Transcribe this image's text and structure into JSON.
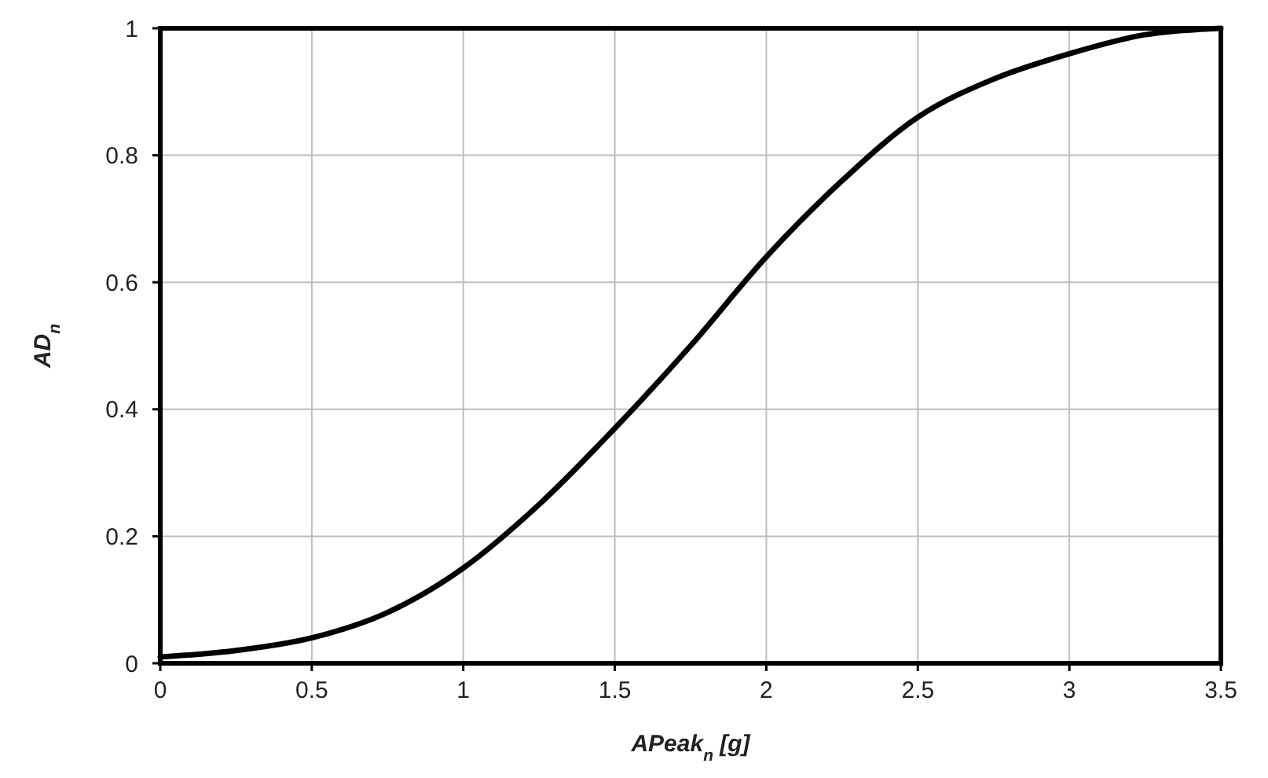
{
  "chart_data": {
    "type": "line",
    "xlabel": "APeak$_{n}$ [g]",
    "ylabel": "AD$_{n}$",
    "x": [
      0,
      0.25,
      0.5,
      0.75,
      1,
      1.25,
      1.5,
      1.75,
      2,
      2.25,
      2.5,
      2.75,
      3,
      3.25,
      3.5
    ],
    "series": [
      {
        "color": "#000000",
        "values": [
          0.01,
          0.02,
          0.04,
          0.08,
          0.15,
          0.25,
          0.37,
          0.5,
          0.64,
          0.76,
          0.86,
          0.92,
          0.96,
          0.99,
          1.0
        ]
      }
    ],
    "xlim": [
      0,
      3.5
    ],
    "ylim": [
      0,
      1
    ],
    "xticks": [
      0,
      0.5,
      1,
      1.5,
      2,
      2.5,
      3,
      3.5
    ],
    "yticks": [
      0,
      0.2,
      0.4,
      0.6,
      0.8,
      1
    ],
    "grid": true,
    "marker": "none",
    "line_style": "solid"
  }
}
